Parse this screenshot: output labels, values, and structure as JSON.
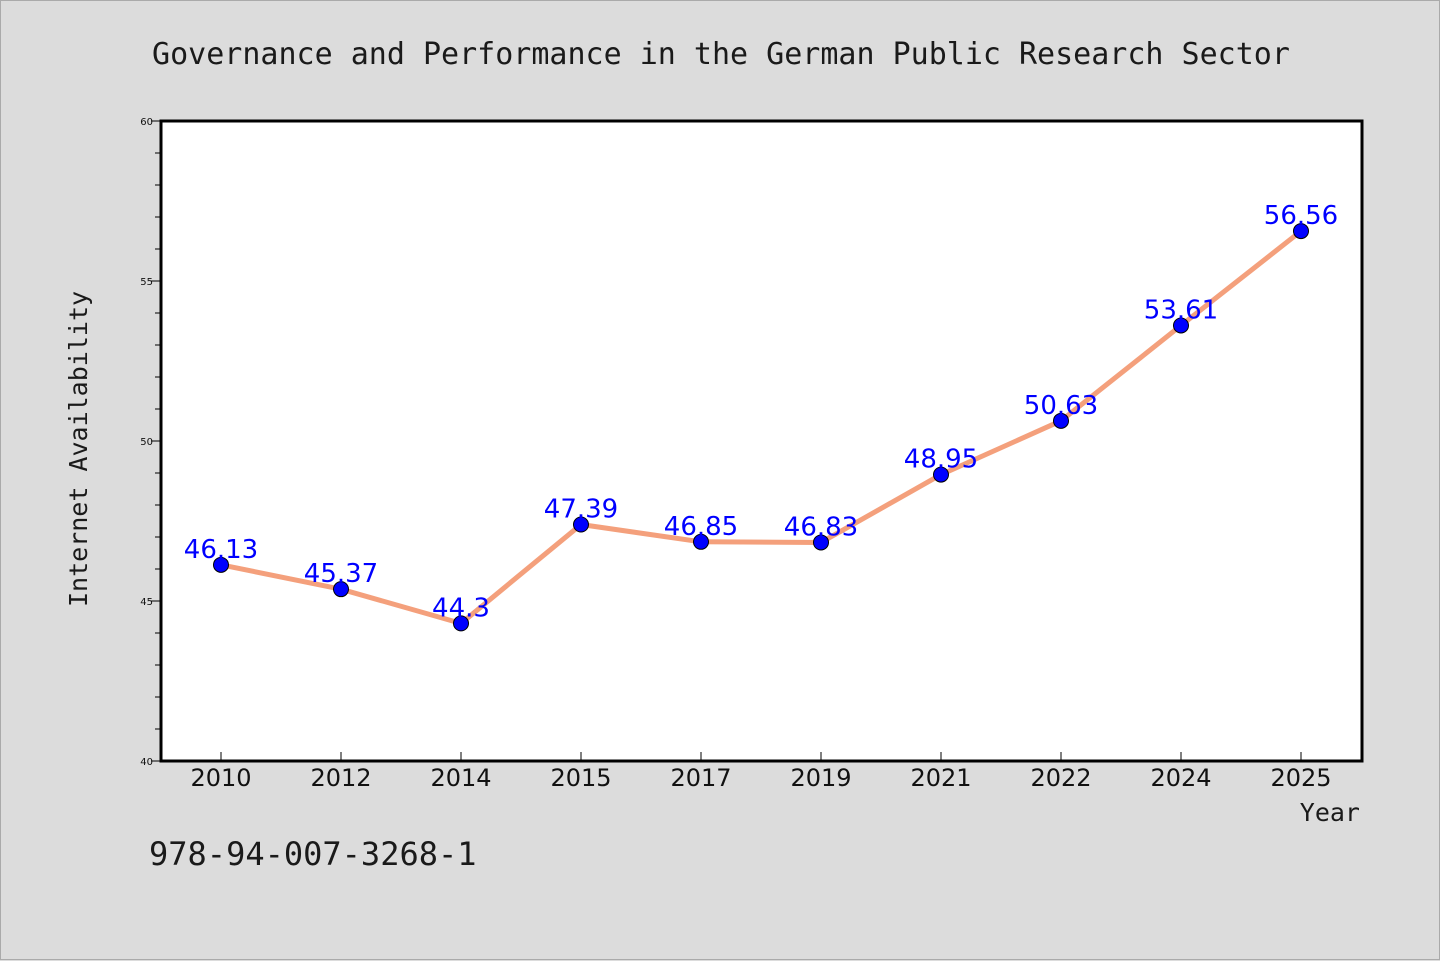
{
  "chart_data": {
    "type": "line",
    "title": "Governance and Performance in the German Public Research Sector",
    "xlabel": "Year",
    "ylabel": "Internet Availability",
    "categories": [
      "2010",
      "2012",
      "2014",
      "2015",
      "2017",
      "2019",
      "2021",
      "2022",
      "2024",
      "2025"
    ],
    "values": [
      46.13,
      45.37,
      44.3,
      47.39,
      46.85,
      46.83,
      48.95,
      50.63,
      53.61,
      56.56
    ],
    "data_labels": [
      "46.13",
      "45.37",
      "44.3",
      "47.39",
      "46.85",
      "46.83",
      "48.95",
      "50.63",
      "53.61",
      "56.56"
    ],
    "ylim": [
      40,
      60
    ],
    "yticks": [
      "40",
      "45",
      "50",
      "55",
      "60"
    ],
    "grid": false,
    "line_color": "#f4a07c",
    "marker_color": "#0000ff",
    "label_color": "#0000ff"
  },
  "annotation": "978-94-007-3268-1"
}
